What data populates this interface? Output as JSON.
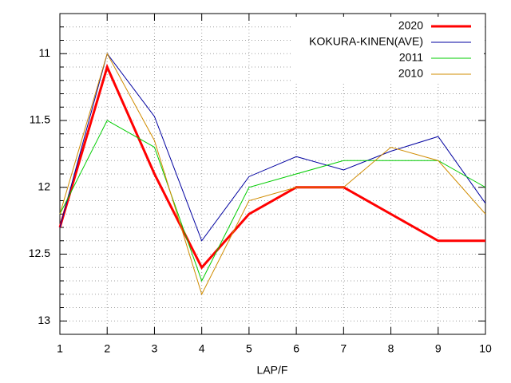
{
  "chart_data": {
    "type": "line",
    "x_label": "LAP/F",
    "x": [
      1,
      2,
      3,
      4,
      5,
      6,
      7,
      8,
      9,
      10
    ],
    "xlim": [
      1,
      10
    ],
    "xticks": [
      1,
      2,
      3,
      4,
      5,
      6,
      7,
      8,
      9,
      10
    ],
    "ylim": [
      13.1,
      10.7
    ],
    "yticks": [
      11,
      11.5,
      12,
      12.5,
      13
    ],
    "y_minor_ticks": [
      10.8,
      10.9,
      11.1,
      11.2,
      11.3,
      11.4,
      11.6,
      11.7,
      11.8,
      11.9,
      12.1,
      12.2,
      12.3,
      12.4,
      12.6,
      12.7,
      12.8,
      12.9
    ],
    "grid": true,
    "legend": "top-right",
    "series": [
      {
        "name": "2020",
        "color": "#ff0000",
        "width": 3,
        "values": [
          12.3,
          11.1,
          11.9,
          12.6,
          12.2,
          12.0,
          12.0,
          12.2,
          12.4,
          12.4
        ]
      },
      {
        "name": "KOKURA-KINEN(AVE)",
        "color": "#0000a0",
        "width": 1,
        "values": [
          12.3,
          11.0,
          11.47,
          12.4,
          11.92,
          11.77,
          11.87,
          11.73,
          11.62,
          12.12
        ]
      },
      {
        "name": "2011",
        "color": "#00cc00",
        "width": 1,
        "values": [
          12.2,
          11.5,
          11.7,
          12.7,
          12.0,
          11.9,
          11.8,
          11.8,
          11.8,
          12.0
        ]
      },
      {
        "name": "2010",
        "color": "#d08c00",
        "width": 1,
        "values": [
          12.2,
          11.0,
          11.65,
          12.8,
          12.1,
          12.0,
          12.0,
          11.7,
          11.8,
          12.2
        ]
      }
    ]
  }
}
